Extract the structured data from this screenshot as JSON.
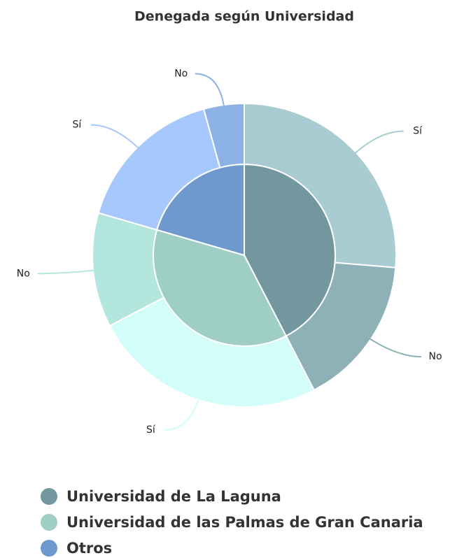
{
  "chart_data": {
    "type": "sunburst",
    "title": "Denegada según Universidad",
    "groups": [
      {
        "name": "Universidad de La Laguna",
        "color": "#73979e",
        "value": 42.4,
        "children": [
          {
            "name": "Sí",
            "value": 26.3,
            "color": "#a9cbd2"
          },
          {
            "name": "No",
            "value": 16.1,
            "color": "#8eb0b7"
          }
        ]
      },
      {
        "name": "Universidad de las Palmas de Gran Canaria",
        "color": "#9fcec4",
        "value": 37.1,
        "children": [
          {
            "name": "Sí",
            "value": 24.9,
            "color": "#d2fdf8"
          },
          {
            "name": "No",
            "value": 12.2,
            "color": "#b3e6dc"
          }
        ]
      },
      {
        "name": "Otros",
        "color": "#6e99cf",
        "value": 20.5,
        "children": [
          {
            "name": "Sí",
            "value": 16.2,
            "color": "#a6c8fc"
          },
          {
            "name": "No",
            "value": 4.3,
            "color": "#8cb2e6"
          }
        ]
      }
    ]
  }
}
